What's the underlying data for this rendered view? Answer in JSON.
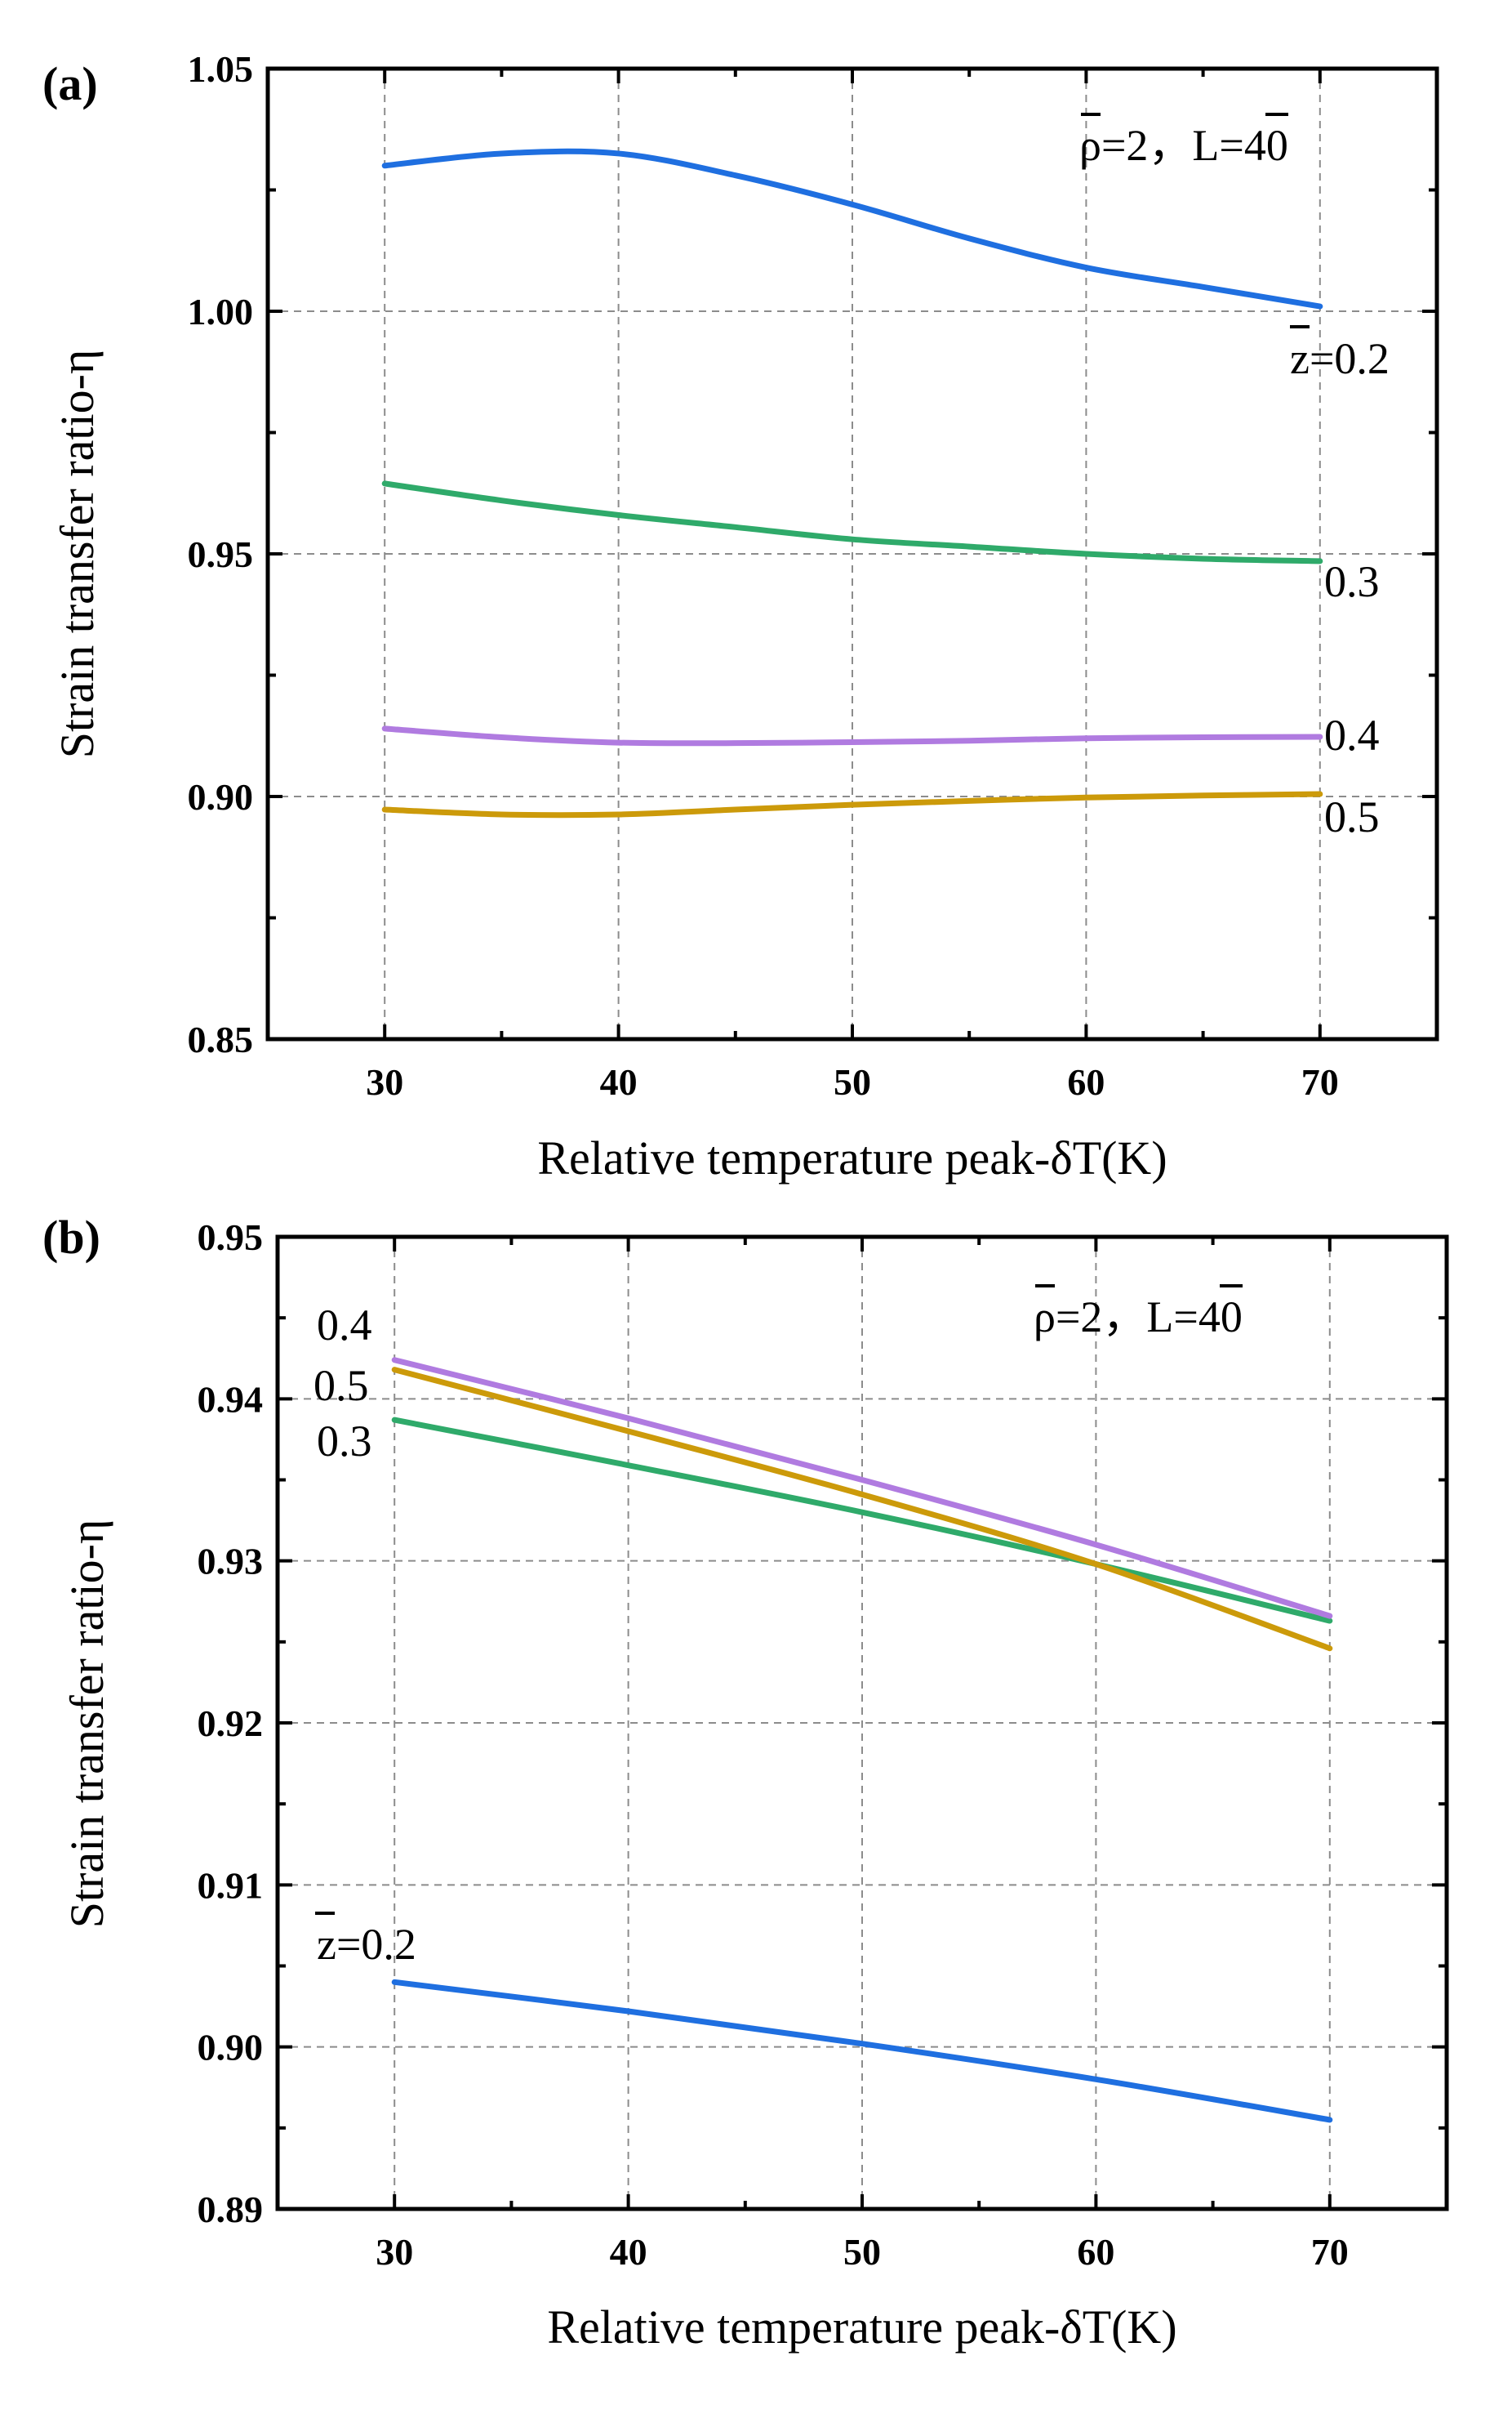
{
  "chart_data": [
    {
      "panel_label": "(a)",
      "type": "line",
      "xlabel": "Relative temperature peak-δT(K)",
      "ylabel": "Strain transfer ratio-η",
      "xlim": [
        25,
        75
      ],
      "ylim": [
        0.85,
        1.05
      ],
      "x_ticks": [
        30,
        40,
        50,
        60,
        70
      ],
      "y_ticks": [
        0.85,
        0.9,
        0.95,
        1.0,
        1.05
      ],
      "x_tick_labels": [
        "30",
        "40",
        "50",
        "60",
        "70"
      ],
      "y_tick_labels": [
        "0.85",
        "0.90",
        "0.95",
        "1.00",
        "1.05"
      ],
      "grid": true,
      "annotation": {
        "rho": "ρ",
        "rho_rest": "=2，",
        "L": "L",
        "L_rest": "=40"
      },
      "series": [
        {
          "name": "0.2",
          "label_prefix": "z",
          "label_rest": "=0.2",
          "color": "#1f6fe0",
          "x": [
            30,
            35,
            40,
            45,
            50,
            55,
            60,
            65,
            70
          ],
          "y": [
            1.03,
            1.0325,
            1.0325,
            1.028,
            1.022,
            1.015,
            1.009,
            1.005,
            1.001
          ]
        },
        {
          "name": "0.3",
          "label_prefix": "",
          "label_rest": "0.3",
          "color": "#2faa6a",
          "x": [
            30,
            35,
            40,
            45,
            50,
            55,
            60,
            65,
            70
          ],
          "y": [
            0.9645,
            0.961,
            0.958,
            0.9555,
            0.953,
            0.9515,
            0.95,
            0.949,
            0.9485
          ]
        },
        {
          "name": "0.4",
          "label_prefix": "",
          "label_rest": "0.4",
          "color": "#b07be0",
          "x": [
            30,
            35,
            40,
            45,
            50,
            55,
            60,
            65,
            70
          ],
          "y": [
            0.914,
            0.9122,
            0.9111,
            0.911,
            0.9112,
            0.9115,
            0.912,
            0.9122,
            0.9123
          ]
        },
        {
          "name": "0.5",
          "label_prefix": "",
          "label_rest": "0.5",
          "color": "#cc9a0a",
          "x": [
            30,
            35,
            40,
            45,
            50,
            55,
            60,
            65,
            70
          ],
          "y": [
            0.8973,
            0.8963,
            0.8963,
            0.8973,
            0.8983,
            0.8991,
            0.8998,
            0.9002,
            0.9005
          ]
        }
      ]
    },
    {
      "panel_label": "(b)",
      "type": "line",
      "xlabel": "Relative temperature peak-δT(K)",
      "ylabel": "Strain transfer ratio-η",
      "xlim": [
        25,
        75
      ],
      "ylim": [
        0.89,
        0.95
      ],
      "x_ticks": [
        30,
        40,
        50,
        60,
        70
      ],
      "y_ticks": [
        0.89,
        0.9,
        0.91,
        0.92,
        0.93,
        0.94,
        0.95
      ],
      "x_tick_labels": [
        "30",
        "40",
        "50",
        "60",
        "70"
      ],
      "y_tick_labels": [
        "0.89",
        "0.90",
        "0.91",
        "0.92",
        "0.93",
        "0.94",
        "0.95"
      ],
      "grid": true,
      "annotation": {
        "rho": "ρ",
        "rho_rest": "=2，",
        "L": "L",
        "L_rest": "=40"
      },
      "series": [
        {
          "name": "0.2",
          "label_prefix": "z",
          "label_rest": "=0.2",
          "color": "#1f6fe0",
          "x": [
            30,
            40,
            50,
            60,
            70
          ],
          "y": [
            0.904,
            0.9022,
            0.9002,
            0.898,
            0.8955
          ]
        },
        {
          "name": "0.3",
          "label_prefix": "",
          "label_rest": "0.3",
          "color": "#2faa6a",
          "x": [
            30,
            40,
            50,
            60,
            70
          ],
          "y": [
            0.9387,
            0.9359,
            0.933,
            0.9298,
            0.9263
          ]
        },
        {
          "name": "0.4",
          "label_prefix": "",
          "label_rest": "0.4",
          "color": "#b07be0",
          "x": [
            30,
            40,
            50,
            60,
            70
          ],
          "y": [
            0.9424,
            0.9388,
            0.935,
            0.931,
            0.9266
          ]
        },
        {
          "name": "0.5",
          "label_prefix": "",
          "label_rest": "0.5",
          "color": "#cc9a0a",
          "x": [
            30,
            40,
            50,
            60,
            70
          ],
          "y": [
            0.9418,
            0.938,
            0.9341,
            0.9298,
            0.9246
          ]
        }
      ]
    }
  ]
}
